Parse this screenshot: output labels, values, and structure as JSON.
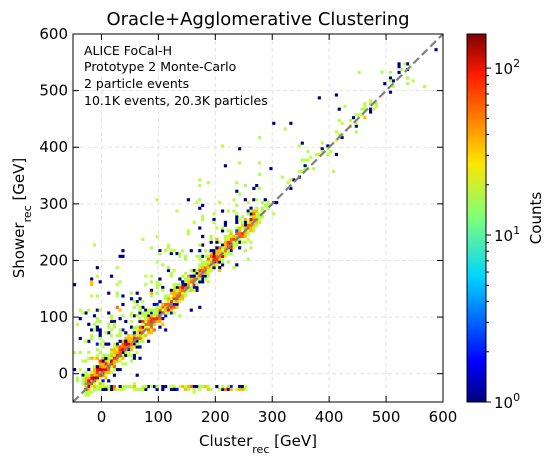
{
  "chart_data": {
    "type": "heatmap",
    "title": "Oracle+Agglomerative Clustering",
    "xlabel": {
      "main": "Cluster",
      "sub": "rec",
      "unit": " [GeV]"
    },
    "ylabel": {
      "main": "Shower",
      "sub": "rec",
      "unit": " [GeV]"
    },
    "xlim": [
      -50,
      600
    ],
    "ylim": [
      -50,
      600
    ],
    "xticks": [
      0,
      100,
      200,
      300,
      400,
      500,
      600
    ],
    "yticks": [
      0,
      100,
      200,
      300,
      400,
      500,
      600
    ],
    "grid": true,
    "diagonal_reference": {
      "from": [
        -50,
        -50
      ],
      "to": [
        600,
        600
      ],
      "style": "dashed",
      "color": "#808080"
    },
    "annotations": [
      "ALICE FoCal-H",
      "Prototype 2 Monte-Carlo",
      "2 particle events",
      "10.1K events, 20.3K particles"
    ],
    "colorbar": {
      "label": "Counts",
      "scale": "log",
      "range": [
        1,
        160
      ],
      "ticks": [
        {
          "value": 1,
          "label": "10",
          "exp": "0"
        },
        {
          "value": 10,
          "label": "10",
          "exp": "1"
        },
        {
          "value": 100,
          "label": "10",
          "exp": "2"
        }
      ],
      "colormap": "jet"
    },
    "density": {
      "bin_size_gev": 5,
      "core": "counts peak (~100+) along the diagonal Shower = Cluster from 0 to ~250 GeV, spreading mostly above the diagonal; sparse counts of 1 extend to ~550 GeV; horizontal band near Shower = -25 GeV for Cluster 0-250 GeV"
    }
  }
}
